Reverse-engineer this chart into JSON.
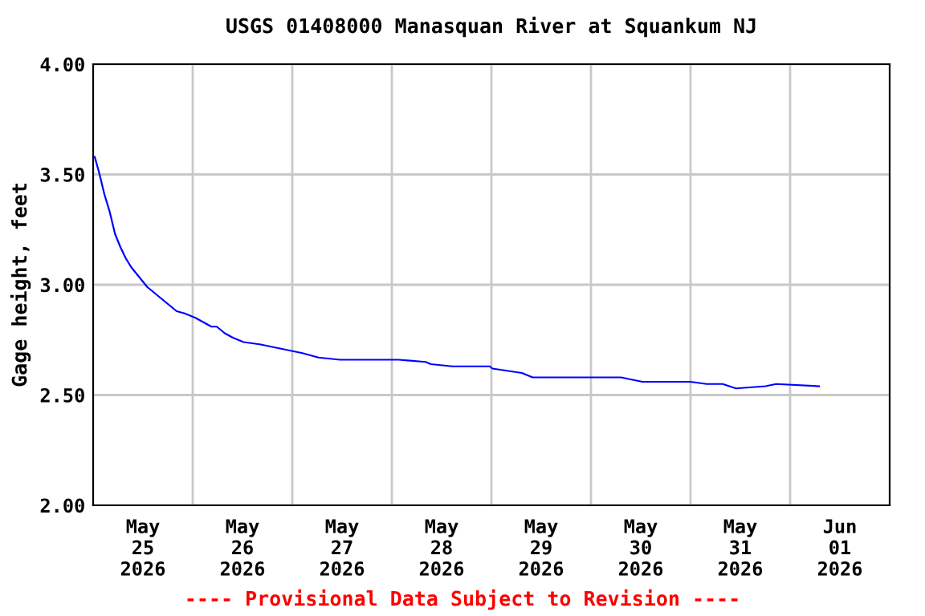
{
  "chart_data": {
    "type": "line",
    "title": "USGS 01408000 Manasquan River at Squankum NJ",
    "ylabel": "Gage height, feet",
    "annotations": [
      "---- Provisional Data Subject to Revision ----"
    ],
    "x": [
      "2026-05-25T00:23",
      "2026-05-25T01:25",
      "2026-05-25T02:43",
      "2026-05-25T04:00",
      "2026-05-25T05:17",
      "2026-05-25T06:35",
      "2026-05-25T07:52",
      "2026-05-25T09:10",
      "2026-05-25T10:27",
      "2026-05-25T11:45",
      "2026-05-25T13:02",
      "2026-05-25T14:19",
      "2026-05-25T16:15",
      "2026-05-25T18:12",
      "2026-05-25T20:08",
      "2026-05-25T22:04",
      "2026-05-26T00:39",
      "2026-05-26T02:35",
      "2026-05-26T04:31",
      "2026-05-26T05:48",
      "2026-05-26T07:44",
      "2026-05-26T09:41",
      "2026-05-26T12:15",
      "2026-05-26T16:08",
      "2026-05-26T21:17",
      "2026-05-26T23:52",
      "2026-05-27T02:27",
      "2026-05-27T06:19",
      "2026-05-27T11:29",
      "2026-05-27T19:14",
      "2026-05-28T01:41",
      "2026-05-28T08:08",
      "2026-05-28T09:25",
      "2026-05-28T14:35",
      "2026-05-28T23:37",
      "2026-05-29T00:15",
      "2026-05-29T07:21",
      "2026-05-29T09:56",
      "2026-05-29T23:29",
      "2026-05-30T07:14",
      "2026-05-30T12:23",
      "2026-05-31T00:00",
      "2026-05-31T03:52",
      "2026-05-31T07:44",
      "2026-05-31T10:58",
      "2026-05-31T18:04",
      "2026-05-31T20:39",
      "2026-06-01T06:58"
    ],
    "series": [
      {
        "color": "#0000ff",
        "values": [
          3.58,
          3.51,
          3.41,
          3.33,
          3.23,
          3.17,
          3.12,
          3.08,
          3.05,
          3.02,
          2.99,
          2.97,
          2.94,
          2.91,
          2.88,
          2.87,
          2.85,
          2.83,
          2.81,
          2.81,
          2.78,
          2.76,
          2.74,
          2.73,
          2.71,
          2.7,
          2.69,
          2.67,
          2.66,
          2.66,
          2.66,
          2.65,
          2.64,
          2.63,
          2.63,
          2.62,
          2.6,
          2.58,
          2.58,
          2.58,
          2.56,
          2.56,
          2.55,
          2.55,
          2.53,
          2.54,
          2.55,
          2.54
        ]
      }
    ],
    "xlim": [
      "2026-05-25T00:00",
      "2026-06-02T00:00"
    ],
    "xticks": [
      {
        "value": "2026-05-25T12:00",
        "label": "May\n25\n2026"
      },
      {
        "value": "2026-05-26T12:00",
        "label": "May\n26\n2026"
      },
      {
        "value": "2026-05-27T12:00",
        "label": "May\n27\n2026"
      },
      {
        "value": "2026-05-28T12:00",
        "label": "May\n28\n2026"
      },
      {
        "value": "2026-05-29T12:00",
        "label": "May\n29\n2026"
      },
      {
        "value": "2026-05-30T12:00",
        "label": "May\n30\n2026"
      },
      {
        "value": "2026-05-31T12:00",
        "label": "May\n31\n2026"
      },
      {
        "value": "2026-06-01T12:00",
        "label": "Jun\n01\n2026"
      },
      {
        "value": "2026-05-26T00:00",
        "label": null
      },
      {
        "value": "2026-05-27T00:00",
        "label": null
      },
      {
        "value": "2026-05-28T00:00",
        "label": null
      },
      {
        "value": "2026-05-29T00:00",
        "label": null
      },
      {
        "value": "2026-05-30T00:00",
        "label": null
      },
      {
        "value": "2026-05-31T00:00",
        "label": null
      },
      {
        "value": "2026-06-01T00:00",
        "label": null
      }
    ],
    "ylim": [
      2.0,
      4.0
    ],
    "yticks": [
      {
        "value": 2.0,
        "label": "2.00"
      },
      {
        "value": 2.5,
        "label": "2.50"
      },
      {
        "value": 3.0,
        "label": "3.00"
      },
      {
        "value": 3.5,
        "label": "3.50"
      },
      {
        "value": 4.0,
        "label": "4.00"
      }
    ],
    "grid": true,
    "line_style": "solid",
    "marker": "none"
  }
}
